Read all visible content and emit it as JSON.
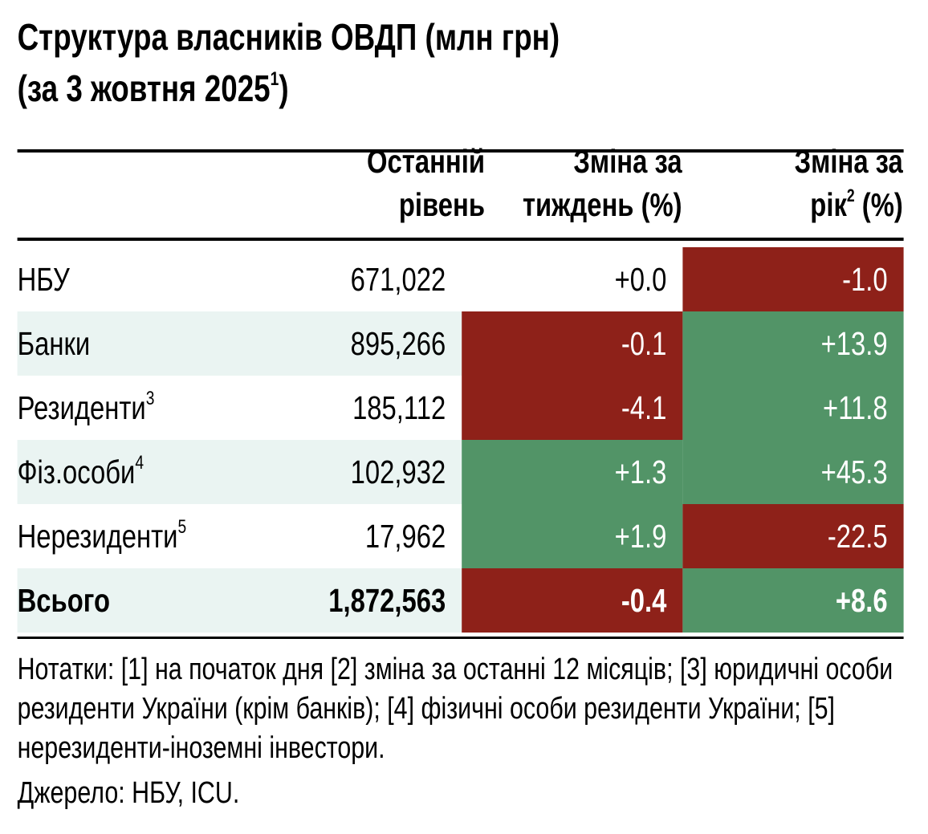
{
  "title": {
    "line1": "Структура власників ОВДП (млн грн)",
    "line2": "(за 3 жовтня 2025",
    "sup": "1",
    "close": ")"
  },
  "chart_data": {
    "type": "table",
    "columns": [
      {
        "l1": "Останній",
        "l2": "рівень",
        "sup": "",
        "tail": ""
      },
      {
        "l1": "Зміна за",
        "l2": "тиждень (%)",
        "sup": "",
        "tail": ""
      },
      {
        "l1": "Зміна за",
        "l2": "рік",
        "sup": "2",
        "tail": " (%)"
      }
    ],
    "rows": [
      {
        "label": "НБУ",
        "sup": "",
        "level": "671,022",
        "week": "+0.0",
        "year": "-1.0",
        "week_color": "none",
        "year_color": "#8e2119"
      },
      {
        "label": "Банки",
        "sup": "",
        "level": "895,266",
        "week": "-0.1",
        "year": "+13.9",
        "week_color": "#8e2119",
        "year_color": "#529467"
      },
      {
        "label": "Резиденти",
        "sup": "3",
        "level": "185,112",
        "week": "-4.1",
        "year": "+11.8",
        "week_color": "#8e2119",
        "year_color": "#529467"
      },
      {
        "label": "Фіз.особи",
        "sup": "4",
        "level": "102,932",
        "week": "+1.3",
        "year": "+45.3",
        "week_color": "#529467",
        "year_color": "#529467"
      },
      {
        "label": "Нерезиденти",
        "sup": "5",
        "level": "17,962",
        "week": "+1.9",
        "year": "-22.5",
        "week_color": "#529467",
        "year_color": "#8e2119"
      },
      {
        "label": "Всього",
        "sup": "",
        "level": "1,872,563",
        "week": "-0.4",
        "year": "+8.6",
        "week_color": "#8e2119",
        "year_color": "#529467"
      }
    ]
  },
  "notes": "Нотатки: [1] на початок дня [2] зміна за останні 12 місяців; [3] юридичні особи  резиденти України (крім банків); [4] фізичні особи резиденти України; [5] нерезиденти-іноземні інвестори.",
  "source": "Джерело: НБУ, ICU."
}
